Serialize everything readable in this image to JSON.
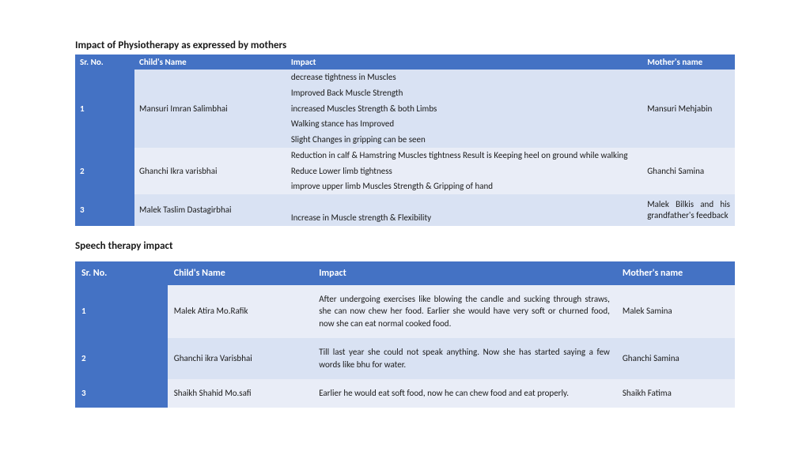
{
  "section1": {
    "title": "Impact of Physiotherapy as expressed by mothers",
    "columns": [
      "Sr. No.",
      "Child's Name",
      "Impact",
      "Mother's name"
    ],
    "rows": [
      {
        "sr": "1",
        "child": "Mansuri Imran Salimbhai",
        "impacts": [
          "decrease tightness in Muscles",
          "Improved Back Muscle Strength",
          "increased Muscles Strength &  both Limbs",
          "Walking stance has Improved",
          "Slight Changes in gripping can be seen"
        ],
        "mother": "Mansuri Mehjabin",
        "shade": "light"
      },
      {
        "sr": "2",
        "child": "Ghanchi Ikra varisbhai",
        "impacts": [
          "Reduction in calf & Hamstring Muscles tightness Result is Keeping heel on ground while walking",
          "Reduce Lower limb tightness",
          "improve upper limb Muscles Strength & Gripping of hand"
        ],
        "mother": "Ghanchi Samina",
        "shade": "lighter"
      },
      {
        "sr": "3",
        "child": "Malek Taslim Dastagirbhai",
        "impacts": [
          "",
          "Increase in Muscle  strength & Flexibility"
        ],
        "mother": "Malek Bilkis and his grandfather's feedback",
        "shade": "light"
      }
    ]
  },
  "section2": {
    "title": "Speech therapy impact",
    "columns": [
      "Sr. No.",
      "Child's Name",
      "Impact",
      "Mother's name"
    ],
    "rows": [
      {
        "sr": "1",
        "child": "Malek Atira Mo.Rafik",
        "impact": "After undergoing exercises like blowing the candle and sucking through straws, she can now chew her food. Earlier she would have very soft or churned food, now she can eat normal cooked food.",
        "mother": "Malek Samina",
        "shade": "lighter"
      },
      {
        "sr": "2",
        "child": "Ghanchi ikra Varisbhai",
        "impact": "Till last year she could not speak anything. Now she has started saying a few words like bhu for water.",
        "mother": "Ghanchi Samina",
        "shade": "light"
      },
      {
        "sr": "3",
        "child": "Shaikh Shahid Mo.safi",
        "impact": "Earlier he would eat soft food, now he can chew food and eat properly.",
        "mother": "Shaikh Fatima",
        "shade": "lighter"
      }
    ]
  },
  "colors": {
    "header_bg": "#4472c4",
    "header_fg": "#ffffff",
    "band_light": "#d9e2f3",
    "band_lighter": "#e9edf7",
    "page_bg": "#ffffff"
  }
}
